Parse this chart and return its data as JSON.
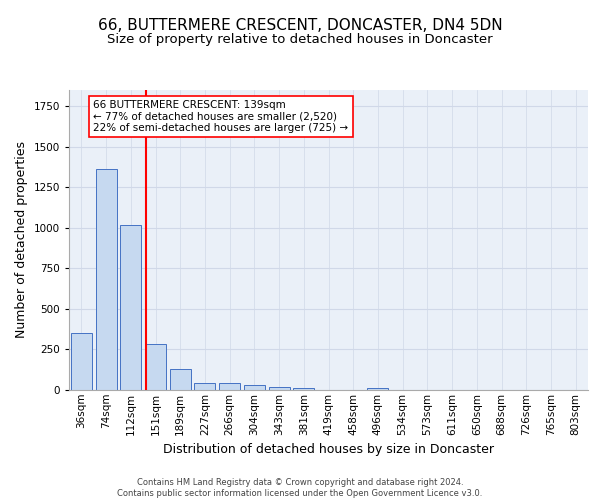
{
  "title": "66, BUTTERMERE CRESCENT, DONCASTER, DN4 5DN",
  "subtitle": "Size of property relative to detached houses in Doncaster",
  "xlabel": "Distribution of detached houses by size in Doncaster",
  "ylabel": "Number of detached properties",
  "footer_line1": "Contains HM Land Registry data © Crown copyright and database right 2024.",
  "footer_line2": "Contains public sector information licensed under the Open Government Licence v3.0.",
  "bar_labels": [
    "36sqm",
    "74sqm",
    "112sqm",
    "151sqm",
    "189sqm",
    "227sqm",
    "266sqm",
    "304sqm",
    "343sqm",
    "381sqm",
    "419sqm",
    "458sqm",
    "496sqm",
    "534sqm",
    "573sqm",
    "611sqm",
    "650sqm",
    "688sqm",
    "726sqm",
    "765sqm",
    "803sqm"
  ],
  "bar_values": [
    350,
    1360,
    1020,
    285,
    130,
    42,
    42,
    30,
    18,
    15,
    0,
    0,
    15,
    0,
    0,
    0,
    0,
    0,
    0,
    0,
    0
  ],
  "bar_color": "#c6d9f0",
  "bar_edge_color": "#4472c4",
  "grid_color": "#d0d8e8",
  "bg_color": "#eaf0f8",
  "red_line_x": 2.62,
  "annotation_text_line1": "66 BUTTERMERE CRESCENT: 139sqm",
  "annotation_text_line2": "← 77% of detached houses are smaller (2,520)",
  "annotation_text_line3": "22% of semi-detached houses are larger (725) →",
  "ylim_max": 1850,
  "title_fontsize": 11,
  "subtitle_fontsize": 9.5,
  "axis_label_fontsize": 9,
  "tick_fontsize": 7.5,
  "annotation_fontsize": 7.5,
  "footer_fontsize": 6
}
